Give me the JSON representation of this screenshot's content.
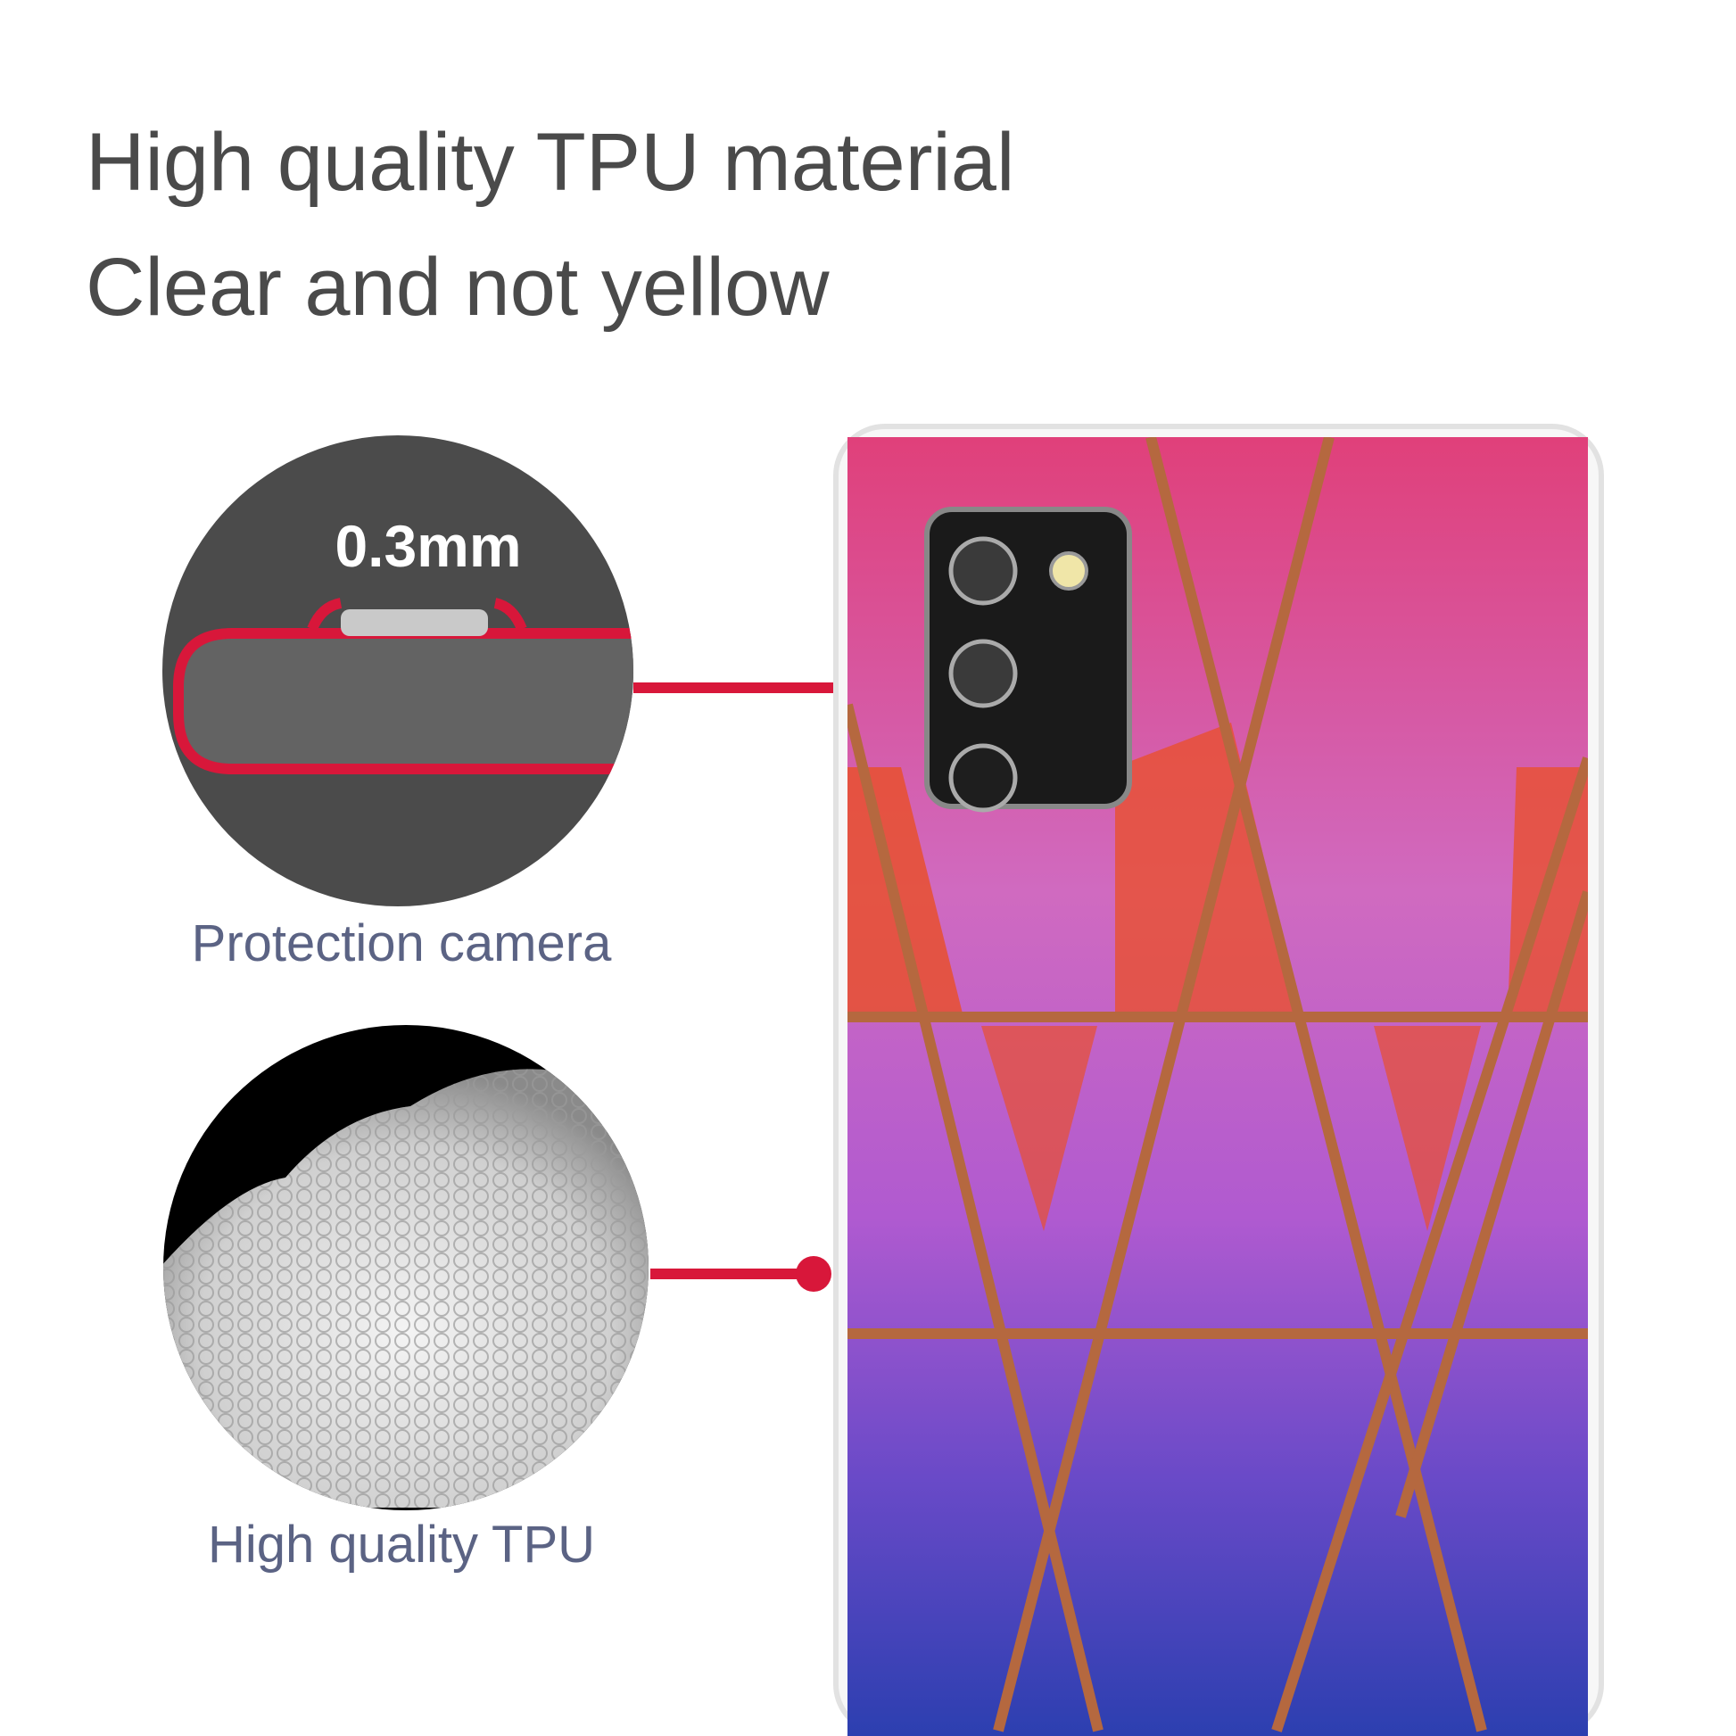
{
  "headline": {
    "line1": "High quality TPU material",
    "line2": "Clear and not yellow"
  },
  "callouts": [
    {
      "label": "0.3mm",
      "caption": "Protection camera"
    },
    {
      "caption": "High quality TPU"
    }
  ],
  "colors": {
    "accent_red": "#d8173a",
    "caption_text": "#5b6384",
    "headline_text": "#4a4a4a",
    "line_bronze": "#b5683f"
  }
}
